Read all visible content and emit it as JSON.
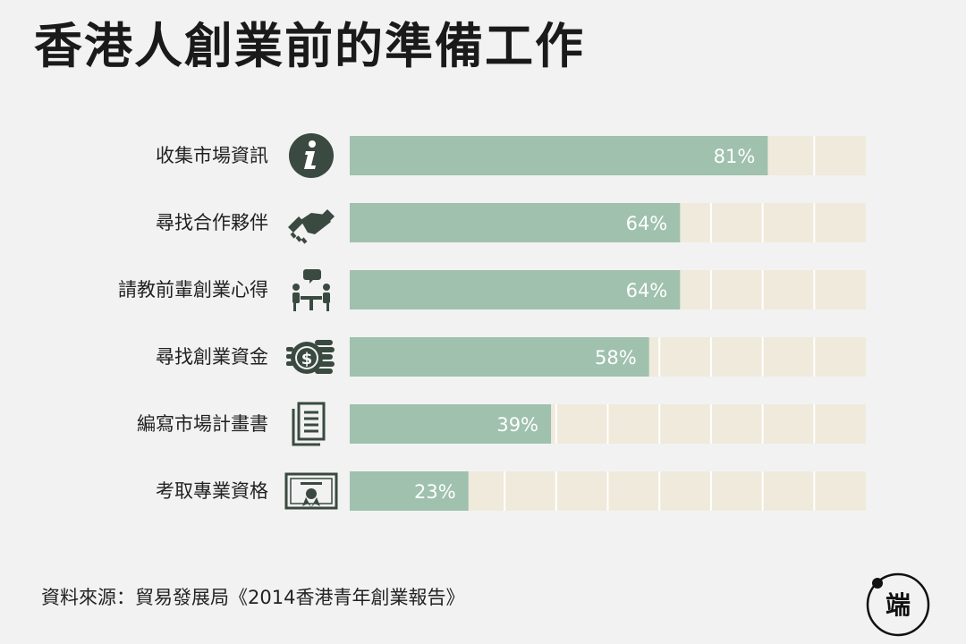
{
  "title": "香港人創業前的準備工作",
  "source": "資料來源：貿易發展局《2014香港青年創業報告》",
  "colors": {
    "bar": "#9fc1ae",
    "track": "#efeadb",
    "icon": "#3a4a40",
    "value_text": "#ffffff"
  },
  "logo": {
    "icon": "initium-media-logo",
    "text": "端"
  },
  "chart_data": {
    "type": "bar",
    "orientation": "horizontal",
    "title": "香港人創業前的準備工作",
    "categories": [
      "收集市場資訊",
      "尋找合作夥伴",
      "請教前輩創業心得",
      "尋找創業資金",
      "編寫市場計畫書",
      "考取專業資格"
    ],
    "values": [
      81,
      64,
      64,
      58,
      39,
      23
    ],
    "value_labels": [
      "81%",
      "64%",
      "64%",
      "58%",
      "39%",
      "23%"
    ],
    "icons": [
      "info-icon",
      "handshake-icon",
      "mentor-meeting-icon",
      "coins-dollar-icon",
      "document-icon",
      "certificate-icon"
    ],
    "xlim": [
      0,
      100
    ],
    "unit": "%",
    "legend": "none",
    "grid": false
  }
}
